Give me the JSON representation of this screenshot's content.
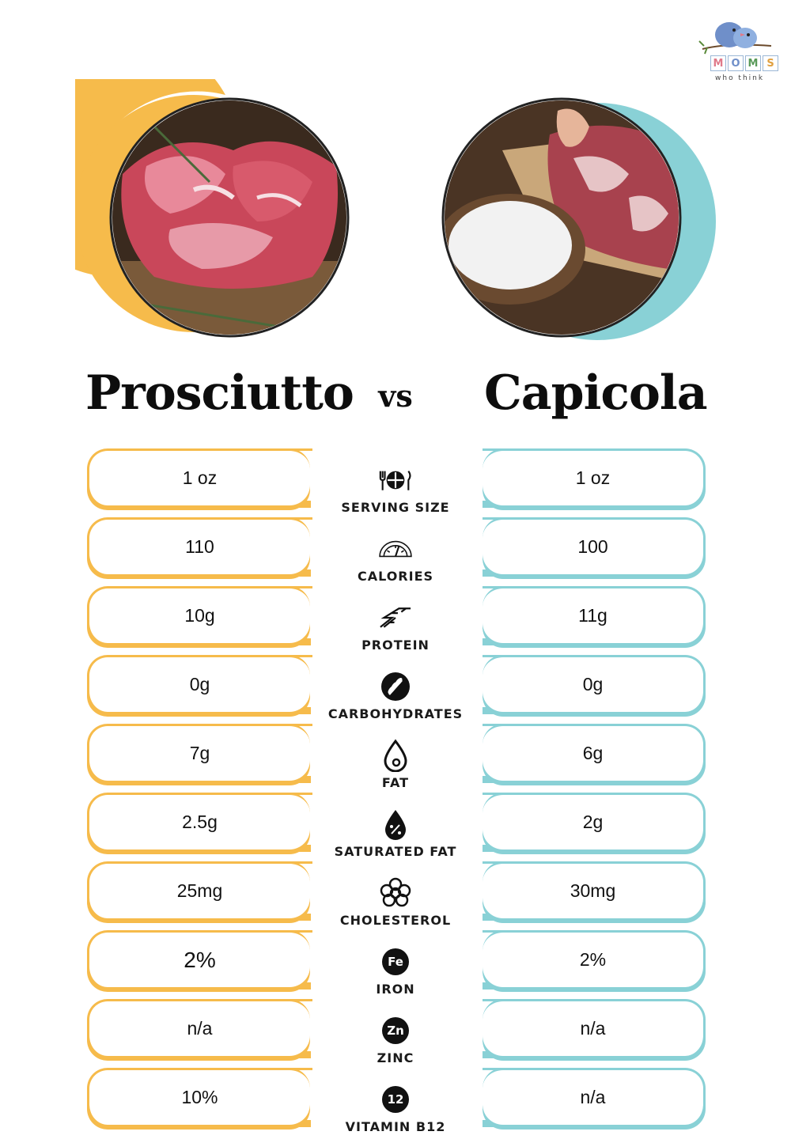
{
  "brand": {
    "logo_letters": [
      "M",
      "O",
      "M",
      "S"
    ],
    "tagline": "who think"
  },
  "comparison": {
    "left_title": "Prosciutto",
    "vs_label": "vs",
    "right_title": "Capicola"
  },
  "colors": {
    "left_accent": "#f6bb4b",
    "right_accent": "#89d1d6"
  },
  "rows": [
    {
      "label": "SERVING SIZE",
      "icon": "utensils-plate-icon",
      "left": "1 oz",
      "right": "1 oz"
    },
    {
      "label": "CALORIES",
      "icon": "gauge-icon",
      "left": "110",
      "right": "100"
    },
    {
      "label": "PROTEIN",
      "icon": "protein-helix-icon",
      "left": "10g",
      "right": "11g"
    },
    {
      "label": "CARBOHYDRATES",
      "icon": "wheat-icon",
      "left": "0g",
      "right": "0g"
    },
    {
      "label": "FAT",
      "icon": "drop-icon",
      "left": "7g",
      "right": "6g"
    },
    {
      "label": "SATURATED FAT",
      "icon": "percent-drop-icon",
      "left": "2.5g",
      "right": "2g"
    },
    {
      "label": "CHOLESTEROL",
      "icon": "cholesterol-icon",
      "left": "25mg",
      "right": "30mg"
    },
    {
      "label": "IRON",
      "icon": "iron-badge-icon",
      "badge": "Fe",
      "left": "2%",
      "right": "2%"
    },
    {
      "label": "ZINC",
      "icon": "zinc-badge-icon",
      "badge": "Zn",
      "left": "n/a",
      "right": "n/a"
    },
    {
      "label": "VITAMIN B12",
      "icon": "b12-badge-icon",
      "badge": "12",
      "left": "10%",
      "right": "n/a"
    }
  ]
}
